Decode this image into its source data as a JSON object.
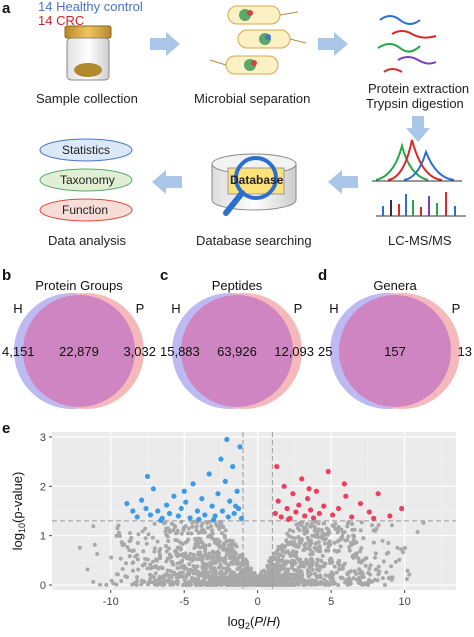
{
  "panel_a": {
    "letter": "a",
    "legend_healthy": "14 Healthy control",
    "legend_crc": "14 CRC",
    "steps": {
      "sample_collection": "Sample collection",
      "microbial_separation": "Microbial separation",
      "protein_extraction": "Protein extraction",
      "trypsin_digestion": "Trypsin digestion",
      "lcms": "LC-MS/MS",
      "database_searching": "Database searching",
      "data_analysis": "Data analysis"
    },
    "database_label": "Database",
    "analysis_items": [
      "Statistics",
      "Taxonomy",
      "Function"
    ],
    "colors": {
      "healthy": "#4a74c9",
      "crc": "#d21f26",
      "arrow": "#a9c6e8"
    }
  },
  "venns": [
    {
      "letter": "b",
      "title": "Protein Groups",
      "left_label": "H",
      "right_label": "P",
      "left_only": "4,151",
      "overlap": "22,879",
      "right_only": "3,032"
    },
    {
      "letter": "c",
      "title": "Peptides",
      "left_label": "H",
      "right_label": "P",
      "left_only": "15,883",
      "overlap": "63,926",
      "right_only": "12,093"
    },
    {
      "letter": "d",
      "title": "Genera",
      "left_label": "H",
      "right_label": "P",
      "left_only": "25",
      "overlap": "157",
      "right_only": "13"
    }
  ],
  "panel_e": {
    "letter": "e"
  },
  "chart_data": {
    "type": "scatter",
    "xlabel": "log2(P/H)",
    "ylabel": "log10(p-value)",
    "xticks": [
      -10,
      -5,
      0,
      5,
      10
    ],
    "yticks": [
      0,
      1,
      2,
      3
    ],
    "xlim": [
      -14,
      13.5
    ],
    "ylim": [
      -0.1,
      3.1
    ],
    "grid": true,
    "thresholds": {
      "fold_change_x": [
        -1,
        1
      ],
      "p_y": 1.3
    },
    "colors": {
      "down": "#3a9be8",
      "up": "#ee3e5d",
      "ns": "#a8a8a8",
      "panel_bg": "#ebebeb"
    },
    "series": [
      {
        "values": [
          [
            -8.9,
            1.65
          ],
          [
            -8.5,
            1.5
          ],
          [
            -8.2,
            1.38
          ],
          [
            -7.9,
            1.72
          ],
          [
            -7.6,
            1.55
          ],
          [
            -7.3,
            1.42
          ],
          [
            -7.1,
            1.95
          ],
          [
            -6.8,
            1.5
          ],
          [
            -6.5,
            1.35
          ],
          [
            -6.2,
            1.62
          ],
          [
            -6.0,
            1.45
          ],
          [
            -5.7,
            1.8
          ],
          [
            -5.4,
            1.4
          ],
          [
            -5.2,
            1.55
          ],
          [
            -4.9,
            1.68
          ],
          [
            -4.6,
            1.36
          ],
          [
            -4.4,
            2.05
          ],
          [
            -4.1,
            1.5
          ],
          [
            -3.8,
            1.75
          ],
          [
            -3.6,
            1.42
          ],
          [
            -3.3,
            2.25
          ],
          [
            -3.1,
            1.6
          ],
          [
            -2.9,
            1.4
          ],
          [
            -2.7,
            1.85
          ],
          [
            -2.5,
            2.55
          ],
          [
            -2.4,
            1.5
          ],
          [
            -2.2,
            2.1
          ],
          [
            -2.0,
            1.38
          ],
          [
            -1.9,
            1.7
          ],
          [
            -1.7,
            2.4
          ],
          [
            -1.6,
            1.45
          ],
          [
            -1.4,
            1.9
          ],
          [
            -1.3,
            1.55
          ],
          [
            -1.2,
            2.8
          ],
          [
            -1.1,
            1.35
          ],
          [
            -3.0,
            1.32
          ],
          [
            -4.0,
            1.33
          ],
          [
            -6.6,
            1.31
          ],
          [
            -7.5,
            2.2
          ],
          [
            -5.0,
            1.9
          ],
          [
            -2.1,
            2.95
          ],
          [
            -1.5,
            1.6
          ]
        ]
      },
      {
        "values": [
          [
            1.2,
            1.45
          ],
          [
            1.4,
            1.7
          ],
          [
            1.6,
            1.38
          ],
          [
            1.8,
            2.0
          ],
          [
            2.0,
            1.55
          ],
          [
            2.2,
            1.35
          ],
          [
            2.4,
            1.85
          ],
          [
            2.6,
            1.48
          ],
          [
            2.8,
            1.62
          ],
          [
            3.0,
            2.15
          ],
          [
            3.2,
            1.4
          ],
          [
            3.4,
            1.75
          ],
          [
            3.6,
            1.52
          ],
          [
            3.8,
            1.36
          ],
          [
            4.0,
            1.9
          ],
          [
            4.2,
            1.45
          ],
          [
            4.5,
            1.6
          ],
          [
            4.8,
            2.3
          ],
          [
            5.1,
            1.42
          ],
          [
            5.5,
            1.55
          ],
          [
            6.0,
            1.8
          ],
          [
            6.4,
            1.38
          ],
          [
            7.0,
            1.65
          ],
          [
            7.6,
            1.48
          ],
          [
            8.2,
            1.85
          ],
          [
            9.0,
            1.4
          ],
          [
            9.8,
            1.55
          ],
          [
            1.3,
            2.4
          ],
          [
            2.1,
            1.33
          ],
          [
            3.5,
            1.95
          ],
          [
            5.9,
            2.05
          ],
          [
            7.9,
            1.35
          ]
        ]
      }
    ]
  }
}
